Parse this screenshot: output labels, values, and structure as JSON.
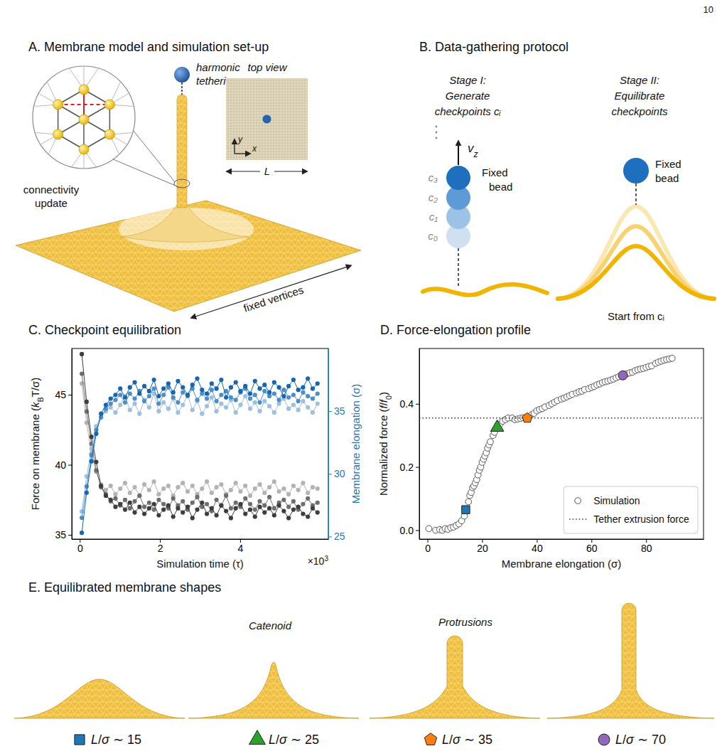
{
  "page_number": "10",
  "panels": {
    "A": {
      "title": "A. Membrane model and simulation set-up",
      "tether_label": [
        "harmonic",
        "tethering"
      ],
      "top_view_label": "top view",
      "axis_x": "x",
      "axis_y": "y",
      "box_size": "L",
      "connectivity_label": [
        "connectivity",
        "update"
      ],
      "boundary_label": "fixed vertices"
    },
    "B": {
      "title": "B. Data-gathering protocol",
      "stage1": {
        "heading": "Stage I:",
        "lines": [
          "Generate",
          "checkpoints cᵢ"
        ],
        "checkpoints": [
          "c₀",
          "c₁",
          "c₂",
          "c₃"
        ],
        "velocity": [
          {
            "text": "v",
            "italic": true
          },
          {
            "text": "z",
            "sub": true,
            "italic": true
          }
        ],
        "bead_label": [
          "Fixed",
          "bead"
        ]
      },
      "stage2": {
        "heading": "Stage II:",
        "lines": [
          "Equilibrate",
          "checkpoints"
        ],
        "bead_label": [
          "Fixed",
          "bead"
        ],
        "footer": "Start from cᵢ"
      }
    },
    "E": {
      "title": "E. Equilibrated membrane shapes",
      "annotations": [
        "Catenoid",
        "Protrusions"
      ],
      "shapes": [
        {
          "label": [
            {
              "text": "L",
              "italic": true
            },
            {
              "text": "/"
            },
            {
              "text": "σ",
              "italic": true
            },
            {
              "text": " ∼ 15"
            }
          ],
          "marker": "square",
          "color": "#1f77b4"
        },
        {
          "label": [
            {
              "text": "L",
              "italic": true
            },
            {
              "text": "/"
            },
            {
              "text": "σ",
              "italic": true
            },
            {
              "text": " ∼ 25"
            }
          ],
          "marker": "triangle",
          "color": "#2ca02c"
        },
        {
          "label": [
            {
              "text": "L",
              "italic": true
            },
            {
              "text": "/"
            },
            {
              "text": "σ",
              "italic": true
            },
            {
              "text": " ∼ 35"
            }
          ],
          "marker": "pentagon",
          "color": "#ff7f0e"
        },
        {
          "label": [
            {
              "text": "L",
              "italic": true
            },
            {
              "text": "/"
            },
            {
              "text": "σ",
              "italic": true
            },
            {
              "text": " ∼ 70"
            }
          ],
          "marker": "circle",
          "color": "#9467bd"
        }
      ]
    }
  },
  "chart_data": [
    {
      "type": "line",
      "title": "C. Checkpoint equilibration",
      "x_label": "Simulation time (τ)",
      "x_offset_label": [
        {
          "text": "×10"
        },
        {
          "text": "3",
          "sup": true
        }
      ],
      "y_label": [
        {
          "text": "Force on membrane ("
        },
        {
          "text": "k",
          "italic": true
        },
        {
          "text": "B",
          "sub": true
        },
        {
          "text": "T/σ)"
        }
      ],
      "y2_label": "Membrane elongation (σ)",
      "xlim": [
        -0.2,
        6.2
      ],
      "xticks": [
        0,
        2,
        4
      ],
      "ylim": [
        34.7,
        48.3
      ],
      "yticks": [
        35,
        40,
        45
      ],
      "y2lim": [
        24.8,
        40
      ],
      "y2ticks": [
        25,
        30,
        35
      ],
      "x": [
        0.05,
        0.17,
        0.29,
        0.41,
        0.53,
        0.65,
        0.77,
        0.89,
        1.01,
        1.13,
        1.25,
        1.37,
        1.49,
        1.61,
        1.73,
        1.85,
        1.97,
        2.09,
        2.21,
        2.33,
        2.45,
        2.57,
        2.69,
        2.81,
        2.93,
        3.05,
        3.17,
        3.29,
        3.41,
        3.53,
        3.65,
        3.77,
        3.89,
        4.01,
        4.13,
        4.25,
        4.37,
        4.49,
        4.61,
        4.73,
        4.85,
        4.97,
        5.09,
        5.21,
        5.33,
        5.45,
        5.57,
        5.69,
        5.81,
        5.93
      ],
      "series": [
        {
          "color": "#b3b3b3",
          "marker": "circle",
          "values": [
            45.8,
            43.0,
            40.8,
            39.5,
            38.6,
            38.2,
            38.5,
            37.9,
            38.3,
            38.7,
            38.0,
            38.4,
            37.8,
            38.6,
            38.2,
            38.8,
            37.9,
            38.3,
            38.5,
            37.8,
            38.4,
            38.7,
            38.1,
            38.5,
            37.9,
            38.3,
            38.8,
            38.0,
            38.4,
            38.6,
            37.9,
            38.2,
            38.7,
            38.1,
            38.5,
            37.8,
            38.3,
            38.6,
            38.0,
            38.4,
            38.8,
            38.1,
            38.3,
            37.9,
            38.5,
            38.2,
            38.7,
            38.0,
            38.4,
            38.3
          ]
        },
        {
          "color": "#6e6e6e",
          "marker": "circle",
          "values": [
            46.5,
            43.8,
            41.5,
            39.6,
            38.4,
            37.9,
            37.4,
            37.6,
            37.1,
            37.5,
            36.9,
            37.4,
            37.8,
            37.0,
            37.3,
            36.8,
            37.5,
            37.2,
            36.9,
            37.6,
            37.1,
            37.4,
            36.8,
            37.3,
            37.7,
            37.0,
            37.2,
            36.7,
            37.5,
            37.1,
            37.8,
            36.9,
            37.3,
            37.0,
            37.6,
            37.2,
            36.8,
            37.4,
            37.1,
            37.7,
            36.9,
            37.3,
            37.5,
            37.0,
            37.4,
            36.8,
            37.2,
            37.6,
            37.1,
            37.3
          ]
        },
        {
          "color": "#3d3d3d",
          "marker": "circle",
          "values": [
            47.9,
            44.5,
            42.0,
            40.2,
            38.5,
            37.8,
            37.5,
            37.0,
            37.2,
            36.8,
            37.3,
            36.6,
            37.0,
            36.5,
            36.9,
            37.2,
            36.4,
            36.8,
            37.1,
            36.3,
            36.9,
            36.6,
            37.0,
            36.2,
            36.8,
            37.3,
            36.5,
            36.9,
            36.4,
            37.1,
            36.7,
            36.2,
            36.9,
            37.2,
            36.5,
            36.8,
            36.3,
            37.0,
            36.6,
            36.9,
            36.4,
            37.1,
            36.7,
            36.2,
            36.8,
            37.0,
            36.5,
            36.3,
            36.9,
            36.6
          ]
        },
        {
          "color": "#9dbfe0",
          "marker": "circle",
          "axis": "y2",
          "values": [
            27.0,
            29.8,
            32.0,
            33.8,
            34.6,
            35.0,
            35.3,
            34.9,
            35.5,
            36.2,
            35.1,
            35.6,
            34.8,
            35.9,
            35.3,
            36.4,
            35.0,
            35.7,
            35.2,
            36.0,
            34.9,
            35.5,
            36.3,
            35.1,
            35.8,
            34.8,
            35.4,
            36.1,
            35.0,
            35.6,
            35.3,
            35.9,
            34.9,
            35.5,
            36.2,
            35.2,
            35.7,
            35.0,
            35.8,
            35.4,
            34.9,
            35.6,
            36.0,
            35.2,
            35.5,
            35.1,
            35.8,
            35.3,
            34.9,
            35.6
          ]
        },
        {
          "color": "#4a8fcc",
          "marker": "circle",
          "axis": "y2",
          "values": [
            26.5,
            29.0,
            31.5,
            33.5,
            34.5,
            35.2,
            35.6,
            35.9,
            36.3,
            35.7,
            36.4,
            36.0,
            36.6,
            35.8,
            36.2,
            36.8,
            35.6,
            36.3,
            36.9,
            36.1,
            35.7,
            36.5,
            36.2,
            36.8,
            35.9,
            36.4,
            36.0,
            36.7,
            35.8,
            36.3,
            36.6,
            36.1,
            35.9,
            36.5,
            36.8,
            36.0,
            36.3,
            35.7,
            36.6,
            36.2,
            36.4,
            35.9,
            36.7,
            36.1,
            36.3,
            35.8,
            36.5,
            36.2,
            36.0,
            36.4
          ]
        },
        {
          "color": "#1565b0",
          "marker": "circle",
          "axis": "y2",
          "values": [
            25.3,
            28.5,
            31.0,
            33.2,
            34.8,
            35.5,
            36.0,
            36.3,
            36.8,
            36.1,
            36.9,
            37.3,
            36.4,
            37.0,
            36.6,
            37.5,
            36.2,
            36.8,
            37.2,
            36.5,
            37.4,
            36.9,
            36.3,
            37.1,
            37.6,
            36.7,
            36.4,
            37.2,
            36.8,
            37.5,
            36.1,
            36.9,
            37.3,
            36.6,
            37.0,
            36.4,
            37.4,
            36.8,
            37.1,
            36.5,
            37.3,
            36.9,
            36.2,
            37.0,
            37.5,
            36.7,
            36.9,
            37.6,
            36.8,
            37.2
          ]
        }
      ]
    },
    {
      "type": "scatter",
      "title": "D. Force-elongation profile",
      "x_label": "Membrane elongation (σ)",
      "y_label": [
        {
          "text": "Normalized force ("
        },
        {
          "text": "f",
          "italic": true
        },
        {
          "text": "/"
        },
        {
          "text": "f",
          "italic": true
        },
        {
          "text": "0",
          "sub": true
        },
        {
          "text": ")"
        }
      ],
      "xlim": [
        -3,
        101
      ],
      "xticks": [
        0,
        20,
        40,
        60,
        80
      ],
      "ylim": [
        -0.028,
        0.575
      ],
      "yticks": [
        {
          "value": 0,
          "label": "0.0"
        },
        0.2,
        0.4
      ],
      "legend": "lower right",
      "series": [
        {
          "name": "Simulation",
          "type": "scatter",
          "marker": "circle",
          "x": [
            0.5,
            3,
            4.5,
            5.5,
            6.5,
            7.5,
            8.5,
            9.5,
            10.5,
            11.5,
            12.5,
            13.5,
            15,
            15.5,
            16,
            16.5,
            17,
            17.5,
            18,
            18.5,
            19,
            19.5,
            20,
            20.5,
            21,
            21.5,
            22,
            22.5,
            23,
            24,
            24.5,
            26.5,
            27.5,
            28.5,
            29.5,
            31,
            32,
            33,
            34,
            35,
            38,
            39,
            40,
            41,
            42,
            43,
            44.5,
            45.5,
            46.5,
            47.5,
            49,
            50,
            51,
            52,
            53,
            54.5,
            55.5,
            56.5,
            57.5,
            59,
            60,
            61,
            62,
            63,
            64,
            65,
            66,
            67,
            68,
            69,
            70,
            73,
            74,
            75,
            76,
            77,
            78,
            79,
            80,
            81,
            82,
            83.5,
            84.5,
            85.5,
            86.5,
            87.5,
            88.5,
            89.5
          ],
          "values": [
            0.005,
            0,
            0.002,
            0,
            0.005,
            0.003,
            0.008,
            0.01,
            0.015,
            0.02,
            0.03,
            0.045,
            0.09,
            0.11,
            0.12,
            0.135,
            0.14,
            0.15,
            0.16,
            0.175,
            0.19,
            0.2,
            0.215,
            0.225,
            0.235,
            0.245,
            0.26,
            0.27,
            0.28,
            0.3,
            0.31,
            0.335,
            0.345,
            0.35,
            0.355,
            0.355,
            0.35,
            0.352,
            0.354,
            0.356,
            0.365,
            0.37,
            0.378,
            0.382,
            0.385,
            0.39,
            0.395,
            0.4,
            0.405,
            0.41,
            0.415,
            0.418,
            0.422,
            0.426,
            0.43,
            0.434,
            0.438,
            0.44,
            0.445,
            0.448,
            0.452,
            0.455,
            0.46,
            0.463,
            0.467,
            0.47,
            0.472,
            0.475,
            0.478,
            0.482,
            0.486,
            0.495,
            0.498,
            0.5,
            0.505,
            0.508,
            0.51,
            0.512,
            0.515,
            0.518,
            0.52,
            0.528,
            0.532,
            0.535,
            0.538,
            0.54,
            0.542,
            0.544
          ]
        },
        {
          "name": "Tether extrusion force",
          "type": "hline",
          "line_style": "dotted",
          "values": [
            0.355
          ]
        }
      ],
      "highlights": [
        {
          "x": [
            14
          ],
          "values": [
            0.065
          ],
          "marker": "square",
          "color": "#1f77b4"
        },
        {
          "x": [
            25.5
          ],
          "values": [
            0.325
          ],
          "marker": "triangle",
          "color": "#2ca02c"
        },
        {
          "x": [
            36.5
          ],
          "values": [
            0.355
          ],
          "marker": "pentagon",
          "color": "#ff7f0e"
        },
        {
          "x": [
            71.5
          ],
          "values": [
            0.49
          ],
          "marker": "circle",
          "color": "#9467bd"
        }
      ]
    }
  ]
}
